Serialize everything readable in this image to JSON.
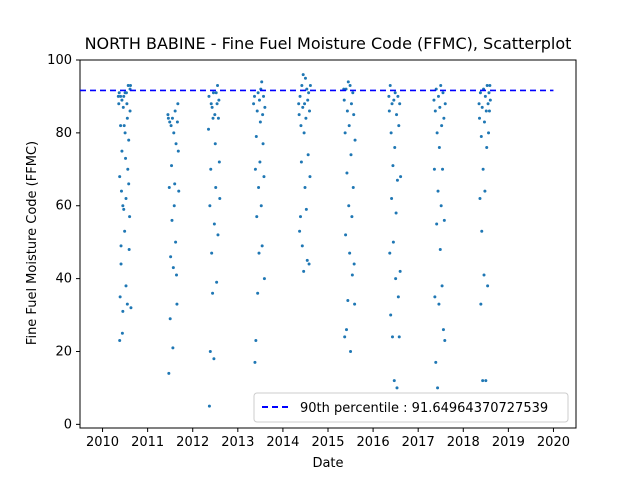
{
  "chart_data": {
    "type": "scatter",
    "title": "NORTH BABINE - Fine Fuel Moisture Code (FFMC), Scatterplot",
    "xlabel": "Date",
    "ylabel": "Fine Fuel Moisture Code (FFMC)",
    "xlim": [
      2009.5,
      2020.5
    ],
    "ylim": [
      -1,
      100
    ],
    "xticks": [
      2010,
      2011,
      2012,
      2013,
      2014,
      2015,
      2016,
      2017,
      2018,
      2019,
      2020
    ],
    "yticks": [
      0,
      20,
      40,
      60,
      80,
      100
    ],
    "grid": false,
    "legend_position": "lower right",
    "point_color": "#1f77b4",
    "series": [
      {
        "values": [
          [
            2010.35,
            90
          ],
          [
            2010.36,
            88
          ],
          [
            2010.37,
            91
          ],
          [
            2010.38,
            23
          ],
          [
            2010.38,
            68
          ],
          [
            2010.39,
            35
          ],
          [
            2010.4,
            82
          ],
          [
            2010.4,
            90
          ],
          [
            2010.41,
            49
          ],
          [
            2010.41,
            44
          ],
          [
            2010.42,
            64
          ],
          [
            2010.43,
            89
          ],
          [
            2010.43,
            75
          ],
          [
            2010.44,
            25
          ],
          [
            2010.45,
            31
          ],
          [
            2010.45,
            60
          ],
          [
            2010.46,
            87
          ],
          [
            2010.47,
            90
          ],
          [
            2010.47,
            59
          ],
          [
            2010.48,
            82
          ],
          [
            2010.49,
            53
          ],
          [
            2010.5,
            80
          ],
          [
            2010.5,
            91
          ],
          [
            2010.51,
            73
          ],
          [
            2010.52,
            38
          ],
          [
            2010.52,
            62
          ],
          [
            2010.53,
            91
          ],
          [
            2010.54,
            88
          ],
          [
            2010.55,
            84
          ],
          [
            2010.55,
            33
          ],
          [
            2010.56,
            70
          ],
          [
            2010.57,
            93
          ],
          [
            2010.58,
            78
          ],
          [
            2010.58,
            66
          ],
          [
            2010.59,
            48
          ],
          [
            2010.6,
            57
          ],
          [
            2010.61,
            86
          ],
          [
            2010.61,
            92
          ],
          [
            2010.62,
            93
          ],
          [
            2010.63,
            32
          ],
          [
            2011.45,
            85
          ],
          [
            2011.46,
            84
          ],
          [
            2011.47,
            14
          ],
          [
            2011.48,
            65
          ],
          [
            2011.49,
            83
          ],
          [
            2011.5,
            29
          ],
          [
            2011.51,
            46
          ],
          [
            2011.52,
            82
          ],
          [
            2011.53,
            71
          ],
          [
            2011.54,
            56
          ],
          [
            2011.55,
            84
          ],
          [
            2011.56,
            21
          ],
          [
            2011.57,
            43
          ],
          [
            2011.58,
            80
          ],
          [
            2011.59,
            60
          ],
          [
            2011.6,
            66
          ],
          [
            2011.61,
            86
          ],
          [
            2011.62,
            50
          ],
          [
            2011.63,
            77
          ],
          [
            2011.64,
            41
          ],
          [
            2011.65,
            33
          ],
          [
            2011.66,
            83
          ],
          [
            2011.67,
            88
          ],
          [
            2011.68,
            75
          ],
          [
            2011.69,
            64
          ],
          [
            2012.35,
            81
          ],
          [
            2012.36,
            90
          ],
          [
            2012.37,
            5
          ],
          [
            2012.38,
            60
          ],
          [
            2012.39,
            20
          ],
          [
            2012.4,
            70
          ],
          [
            2012.41,
            88
          ],
          [
            2012.42,
            47
          ],
          [
            2012.43,
            87
          ],
          [
            2012.44,
            36
          ],
          [
            2012.45,
            84
          ],
          [
            2012.46,
            91
          ],
          [
            2012.47,
            18
          ],
          [
            2012.48,
            55
          ],
          [
            2012.49,
            85
          ],
          [
            2012.5,
            77
          ],
          [
            2012.51,
            65
          ],
          [
            2012.52,
            91
          ],
          [
            2012.53,
            39
          ],
          [
            2012.54,
            88
          ],
          [
            2012.55,
            93
          ],
          [
            2012.56,
            52
          ],
          [
            2012.57,
            84
          ],
          [
            2012.58,
            89
          ],
          [
            2012.59,
            72
          ],
          [
            2012.6,
            62
          ],
          [
            2013.35,
            88
          ],
          [
            2013.37,
            90
          ],
          [
            2013.38,
            17
          ],
          [
            2013.39,
            70
          ],
          [
            2013.4,
            23
          ],
          [
            2013.41,
            79
          ],
          [
            2013.42,
            57
          ],
          [
            2013.43,
            86
          ],
          [
            2013.44,
            36
          ],
          [
            2013.45,
            91
          ],
          [
            2013.46,
            65
          ],
          [
            2013.47,
            47
          ],
          [
            2013.48,
            89
          ],
          [
            2013.49,
            72
          ],
          [
            2013.5,
            83
          ],
          [
            2013.51,
            92
          ],
          [
            2013.52,
            60
          ],
          [
            2013.53,
            94
          ],
          [
            2013.54,
            49
          ],
          [
            2013.55,
            85
          ],
          [
            2013.56,
            77
          ],
          [
            2013.57,
            90
          ],
          [
            2013.58,
            68
          ],
          [
            2013.59,
            40
          ],
          [
            2013.6,
            87
          ],
          [
            2014.35,
            88
          ],
          [
            2014.36,
            85
          ],
          [
            2014.37,
            53
          ],
          [
            2014.38,
            90
          ],
          [
            2014.39,
            57
          ],
          [
            2014.4,
            82
          ],
          [
            2014.41,
            72
          ],
          [
            2014.42,
            93
          ],
          [
            2014.43,
            49
          ],
          [
            2014.44,
            87
          ],
          [
            2014.45,
            96
          ],
          [
            2014.46,
            42
          ],
          [
            2014.47,
            80
          ],
          [
            2014.48,
            88
          ],
          [
            2014.49,
            65
          ],
          [
            2014.5,
            95
          ],
          [
            2014.51,
            84
          ],
          [
            2014.52,
            59
          ],
          [
            2014.53,
            92
          ],
          [
            2014.54,
            45
          ],
          [
            2014.55,
            89
          ],
          [
            2014.56,
            74
          ],
          [
            2014.57,
            91
          ],
          [
            2014.58,
            44
          ],
          [
            2014.59,
            86
          ],
          [
            2014.6,
            68
          ],
          [
            2014.61,
            93
          ],
          [
            2015.35,
            92
          ],
          [
            2015.36,
            89
          ],
          [
            2015.37,
            24
          ],
          [
            2015.38,
            80
          ],
          [
            2015.39,
            52
          ],
          [
            2015.4,
            92
          ],
          [
            2015.41,
            26
          ],
          [
            2015.42,
            69
          ],
          [
            2015.43,
            86
          ],
          [
            2015.44,
            34
          ],
          [
            2015.45,
            94
          ],
          [
            2015.46,
            60
          ],
          [
            2015.47,
            82
          ],
          [
            2015.48,
            47
          ],
          [
            2015.49,
            93
          ],
          [
            2015.5,
            20
          ],
          [
            2015.51,
            74
          ],
          [
            2015.52,
            88
          ],
          [
            2015.53,
            57
          ],
          [
            2015.54,
            41
          ],
          [
            2015.55,
            91
          ],
          [
            2015.56,
            65
          ],
          [
            2015.57,
            85
          ],
          [
            2015.58,
            44
          ],
          [
            2015.59,
            33
          ],
          [
            2015.6,
            78
          ],
          [
            2016.35,
            90
          ],
          [
            2016.36,
            86
          ],
          [
            2016.37,
            47
          ],
          [
            2016.38,
            93
          ],
          [
            2016.39,
            30
          ],
          [
            2016.4,
            80
          ],
          [
            2016.41,
            62
          ],
          [
            2016.42,
            88
          ],
          [
            2016.43,
            24
          ],
          [
            2016.44,
            71
          ],
          [
            2016.45,
            50
          ],
          [
            2016.46,
            89
          ],
          [
            2016.47,
            12
          ],
          [
            2016.48,
            76
          ],
          [
            2016.49,
            91
          ],
          [
            2016.5,
            40
          ],
          [
            2016.51,
            58
          ],
          [
            2016.52,
            85
          ],
          [
            2016.53,
            10
          ],
          [
            2016.54,
            67
          ],
          [
            2016.55,
            90
          ],
          [
            2016.56,
            35
          ],
          [
            2016.57,
            82
          ],
          [
            2016.58,
            24
          ],
          [
            2016.59,
            88
          ],
          [
            2016.6,
            42
          ],
          [
            2016.61,
            68
          ],
          [
            2016.62,
            8
          ],
          [
            2017.35,
            89
          ],
          [
            2017.36,
            70
          ],
          [
            2017.37,
            35
          ],
          [
            2017.38,
            86
          ],
          [
            2017.39,
            17
          ],
          [
            2017.4,
            92
          ],
          [
            2017.41,
            55
          ],
          [
            2017.42,
            80
          ],
          [
            2017.43,
            10
          ],
          [
            2017.44,
            64
          ],
          [
            2017.45,
            90
          ],
          [
            2017.46,
            33
          ],
          [
            2017.47,
            76
          ],
          [
            2017.48,
            87
          ],
          [
            2017.49,
            48
          ],
          [
            2017.5,
            93
          ],
          [
            2017.51,
            60
          ],
          [
            2017.52,
            82
          ],
          [
            2017.53,
            38
          ],
          [
            2017.54,
            70
          ],
          [
            2017.55,
            91
          ],
          [
            2017.56,
            26
          ],
          [
            2017.57,
            84
          ],
          [
            2017.58,
            56
          ],
          [
            2017.59,
            23
          ],
          [
            2017.6,
            88
          ],
          [
            2018.35,
            88
          ],
          [
            2018.36,
            84
          ],
          [
            2018.37,
            62
          ],
          [
            2018.38,
            91
          ],
          [
            2018.39,
            33
          ],
          [
            2018.4,
            79
          ],
          [
            2018.41,
            53
          ],
          [
            2018.42,
            87
          ],
          [
            2018.43,
            12
          ],
          [
            2018.44,
            70
          ],
          [
            2018.45,
            92
          ],
          [
            2018.46,
            41
          ],
          [
            2018.47,
            83
          ],
          [
            2018.48,
            64
          ],
          [
            2018.49,
            90
          ],
          [
            2018.5,
            12
          ],
          [
            2018.51,
            86
          ],
          [
            2018.52,
            76
          ],
          [
            2018.53,
            93
          ],
          [
            2018.54,
            38
          ],
          [
            2018.55,
            88
          ],
          [
            2018.56,
            80
          ],
          [
            2018.57,
            91
          ],
          [
            2018.58,
            86
          ],
          [
            2018.59,
            93
          ],
          [
            2018.6,
            89
          ]
        ]
      },
      {
        "name": "90th percentile : 91.64964370727539",
        "type": "line",
        "style": "dashed",
        "color": "#0000ff",
        "x": [
          2009.5,
          2020.0
        ],
        "y": [
          91.64964370727539,
          91.64964370727539
        ]
      }
    ]
  }
}
